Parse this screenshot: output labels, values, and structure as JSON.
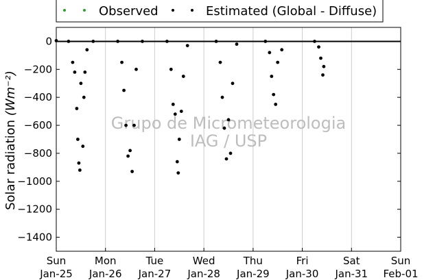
{
  "chart_data": {
    "type": "scatter",
    "ylabel": "Solar radiation",
    "ylabel_unit": "(Wm⁻²)",
    "xlim": [
      "2015-01-25",
      "2015-02-01"
    ],
    "ylim": [
      -1500,
      100
    ],
    "yticks": [
      0,
      -200,
      -400,
      -600,
      -800,
      -1000,
      -1200,
      -1400
    ],
    "xticks": [
      {
        "x": "2015-01-25",
        "day": "Sun",
        "date": "Jan-25"
      },
      {
        "x": "2015-01-26",
        "day": "Mon",
        "date": "Jan-26"
      },
      {
        "x": "2015-01-27",
        "day": "Tue",
        "date": "Jan-27"
      },
      {
        "x": "2015-01-28",
        "day": "Wed",
        "date": "Jan-28"
      },
      {
        "x": "2015-01-29",
        "day": "Thu",
        "date": "Jan-29"
      },
      {
        "x": "2015-01-30",
        "day": "Fri",
        "date": "Jan-30"
      },
      {
        "x": "2015-01-31",
        "day": "Sat",
        "date": "Jan-31"
      },
      {
        "x": "2015-02-01",
        "day": "Sun",
        "date": "Feb-01"
      }
    ],
    "grid": "vertical",
    "legend_position": "top-center, above plot",
    "reference_line": 0,
    "watermark": [
      "Grupo de Micrometeorologia",
      "IAG / USP"
    ],
    "series": [
      {
        "name": "Observed",
        "color": "#2ca02c",
        "points": []
      },
      {
        "name": "Estimated (Global - Diffuse)",
        "color": "#000000",
        "points": [
          [
            "2015-01-25",
            5
          ],
          [
            "2015-01-25T06:00",
            0
          ],
          [
            "2015-01-25T08:00",
            -150
          ],
          [
            "2015-01-25T09:00",
            -220
          ],
          [
            "2015-01-25T10:00",
            -480
          ],
          [
            "2015-01-25T10:30",
            -700
          ],
          [
            "2015-01-25T11:00",
            -870
          ],
          [
            "2015-01-25T11:30",
            -920
          ],
          [
            "2015-01-25T12:00",
            -300
          ],
          [
            "2015-01-25T13:00",
            -750
          ],
          [
            "2015-01-25T13:30",
            -400
          ],
          [
            "2015-01-25T14:00",
            -220
          ],
          [
            "2015-01-25T15:00",
            -60
          ],
          [
            "2015-01-25T18:00",
            0
          ],
          [
            "2015-01-26T06:00",
            0
          ],
          [
            "2015-01-26T08:00",
            -150
          ],
          [
            "2015-01-26T09:00",
            -350
          ],
          [
            "2015-01-26T10:00",
            -600
          ],
          [
            "2015-01-26T11:00",
            -820
          ],
          [
            "2015-01-26T12:00",
            -780
          ],
          [
            "2015-01-26T13:00",
            -930
          ],
          [
            "2015-01-26T14:00",
            -600
          ],
          [
            "2015-01-26T15:00",
            -200
          ],
          [
            "2015-01-26T18:00",
            0
          ],
          [
            "2015-01-27T06:00",
            0
          ],
          [
            "2015-01-27T08:00",
            -200
          ],
          [
            "2015-01-27T09:00",
            -450
          ],
          [
            "2015-01-27T10:00",
            -520
          ],
          [
            "2015-01-27T11:00",
            -860
          ],
          [
            "2015-01-27T11:30",
            -940
          ],
          [
            "2015-01-27T12:00",
            -700
          ],
          [
            "2015-01-27T13:00",
            -500
          ],
          [
            "2015-01-27T14:00",
            -250
          ],
          [
            "2015-01-27T16:00",
            -30
          ],
          [
            "2015-01-28T06:00",
            0
          ],
          [
            "2015-01-28T08:00",
            -150
          ],
          [
            "2015-01-28T09:00",
            -400
          ],
          [
            "2015-01-28T10:00",
            -620
          ],
          [
            "2015-01-28T11:00",
            -840
          ],
          [
            "2015-01-28T12:00",
            -560
          ],
          [
            "2015-01-28T13:00",
            -800
          ],
          [
            "2015-01-28T14:00",
            -300
          ],
          [
            "2015-01-28T16:00",
            -20
          ],
          [
            "2015-01-29T06:00",
            0
          ],
          [
            "2015-01-29T08:00",
            -80
          ],
          [
            "2015-01-29T09:00",
            -250
          ],
          [
            "2015-01-29T10:00",
            -380
          ],
          [
            "2015-01-29T11:00",
            -450
          ],
          [
            "2015-01-29T12:00",
            -150
          ],
          [
            "2015-01-29T14:00",
            -60
          ],
          [
            "2015-01-30T06:00",
            0
          ],
          [
            "2015-01-30T08:00",
            -40
          ],
          [
            "2015-01-30T09:00",
            -120
          ],
          [
            "2015-01-30T10:00",
            -240
          ],
          [
            "2015-01-30T10:30",
            -180
          ]
        ]
      }
    ]
  }
}
